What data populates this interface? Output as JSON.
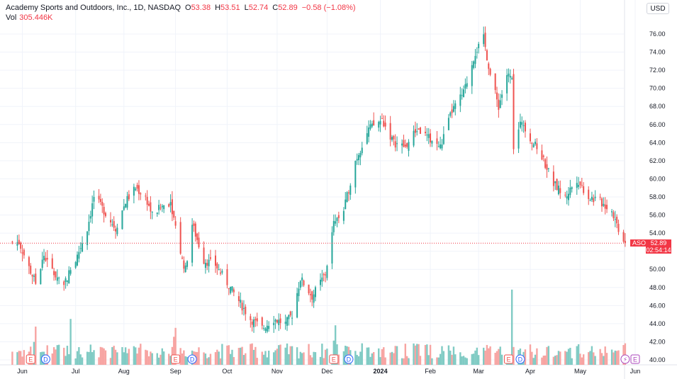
{
  "legend": {
    "title": "Academy Sports and Outdoors, Inc., 1D, NASDAQ",
    "o_label": "O",
    "o_value": "53.38",
    "h_label": "H",
    "h_value": "53.51",
    "l_label": "L",
    "l_value": "52.74",
    "c_label": "C",
    "c_value": "52.89",
    "change": "−0.58 (−1.08%)",
    "vol_label": "Vol",
    "vol_value": "305.446K"
  },
  "currency_button": "USD",
  "price_scale": {
    "symbol": "ASO",
    "last_price": "52.89",
    "countdown": "02:54:14"
  },
  "colors": {
    "up": "#26a69a",
    "down": "#ef5350",
    "vol_up": "#80cbc4",
    "vol_down": "#f7a4a2",
    "last_line": "#f23645",
    "grid": "#f0f3fa",
    "axis_text": "#131722"
  },
  "events": [
    {
      "type": "earnings",
      "label": "E",
      "date": "Jun"
    },
    {
      "type": "dividend",
      "label": "D",
      "date": "Jun"
    },
    {
      "type": "earnings",
      "label": "E",
      "date": "Sep"
    },
    {
      "type": "dividend",
      "label": "D",
      "date": "Sep"
    },
    {
      "type": "earnings",
      "label": "E",
      "date": "Dec"
    },
    {
      "type": "dividend",
      "label": "D",
      "date": "Dec"
    },
    {
      "type": "earnings",
      "label": "E",
      "date": "Mar"
    },
    {
      "type": "dividend",
      "label": "D",
      "date": "Mar"
    },
    {
      "type": "split",
      "label": "⚡",
      "date": "May"
    },
    {
      "type": "earnings",
      "label": "E",
      "date": "Jun"
    }
  ],
  "chart_data": {
    "type": "candlestick",
    "title": "Academy Sports and Outdoors, Inc., 1D, NASDAQ",
    "ylim": [
      40,
      77
    ],
    "y_ticks": [
      "40.00",
      "42.00",
      "44.00",
      "46.00",
      "48.00",
      "50.00",
      "52.00",
      "54.00",
      "56.00",
      "58.00",
      "60.00",
      "62.00",
      "64.00",
      "66.00",
      "68.00",
      "70.00",
      "72.00",
      "74.00",
      "76.00"
    ],
    "x_ticks": [
      "Jun",
      "Jul",
      "Aug",
      "Sep",
      "Oct",
      "Nov",
      "Dec",
      "2024",
      "Feb",
      "Mar",
      "Apr",
      "May",
      "Jun"
    ],
    "last_price": 52.89,
    "close_path": [
      [
        "2023-05-30",
        53.0
      ],
      [
        "2023-06-05",
        50.2
      ],
      [
        "2023-06-09",
        48.5
      ],
      [
        "2023-06-14",
        51.5
      ],
      [
        "2023-06-20",
        49.5
      ],
      [
        "2023-06-26",
        48.5
      ],
      [
        "2023-07-03",
        51.0
      ],
      [
        "2023-07-10",
        54.5
      ],
      [
        "2023-07-14",
        58.0
      ],
      [
        "2023-07-20",
        56.5
      ],
      [
        "2023-07-27",
        54.5
      ],
      [
        "2023-08-02",
        57.5
      ],
      [
        "2023-08-08",
        59.0
      ],
      [
        "2023-08-14",
        58.0
      ],
      [
        "2023-08-18",
        56.0
      ],
      [
        "2023-08-24",
        57.0
      ],
      [
        "2023-08-29",
        57.5
      ],
      [
        "2023-09-05",
        51.0
      ],
      [
        "2023-09-07",
        50.0
      ],
      [
        "2023-09-11",
        55.0
      ],
      [
        "2023-09-18",
        51.0
      ],
      [
        "2023-09-25",
        50.5
      ],
      [
        "2023-10-02",
        48.5
      ],
      [
        "2023-10-09",
        46.5
      ],
      [
        "2023-10-16",
        44.5
      ],
      [
        "2023-10-23",
        43.5
      ],
      [
        "2023-10-30",
        44.5
      ],
      [
        "2023-11-06",
        44.0
      ],
      [
        "2023-11-10",
        45.0
      ],
      [
        "2023-11-15",
        49.0
      ],
      [
        "2023-11-22",
        47.0
      ],
      [
        "2023-11-30",
        49.5
      ],
      [
        "2023-12-05",
        55.0
      ],
      [
        "2023-12-11",
        56.5
      ],
      [
        "2023-12-18",
        62.0
      ],
      [
        "2023-12-26",
        65.5
      ],
      [
        "2024-01-03",
        66.5
      ],
      [
        "2024-01-10",
        64.0
      ],
      [
        "2024-01-17",
        63.5
      ],
      [
        "2024-01-24",
        65.5
      ],
      [
        "2024-01-31",
        64.5
      ],
      [
        "2024-02-07",
        63.5
      ],
      [
        "2024-02-14",
        67.5
      ],
      [
        "2024-02-21",
        69.5
      ],
      [
        "2024-02-28",
        74.0
      ],
      [
        "2024-03-04",
        75.5
      ],
      [
        "2024-03-08",
        71.5
      ],
      [
        "2024-03-13",
        68.0
      ],
      [
        "2024-03-18",
        71.5
      ],
      [
        "2024-03-21",
        71.0
      ],
      [
        "2024-03-22",
        63.5
      ],
      [
        "2024-03-27",
        66.5
      ],
      [
        "2024-04-01",
        64.5
      ],
      [
        "2024-04-08",
        62.5
      ],
      [
        "2024-04-15",
        59.5
      ],
      [
        "2024-04-22",
        58.0
      ],
      [
        "2024-04-29",
        60.0
      ],
      [
        "2024-05-06",
        58.0
      ],
      [
        "2024-05-13",
        57.5
      ],
      [
        "2024-05-20",
        56.5
      ],
      [
        "2024-05-24",
        54.5
      ],
      [
        "2024-05-28",
        52.89
      ]
    ],
    "volume_spikes": [
      [
        "2023-06-08",
        1.8
      ],
      [
        "2023-06-09",
        3.0
      ],
      [
        "2023-06-30",
        3.6
      ],
      [
        "2023-08-31",
        2.2
      ],
      [
        "2023-09-01",
        2.9
      ],
      [
        "2023-12-05",
        1.9
      ],
      [
        "2023-12-06",
        3.1
      ],
      [
        "2024-03-21",
        5.9
      ]
    ]
  }
}
